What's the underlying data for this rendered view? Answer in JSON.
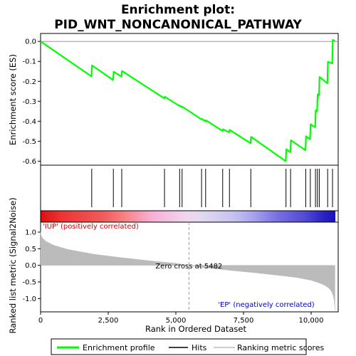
{
  "chart_data": {
    "type": "line",
    "title_line1": "Enrichment plot:",
    "title_line2": "PID_WNT_NONCANONICAL_PATHWAY",
    "top_panel": {
      "ylabel": "Enrichment score (ES)",
      "ylim": [
        -0.62,
        0.04
      ],
      "yticks": [
        0.0,
        -0.1,
        -0.2,
        -0.3,
        -0.4,
        -0.5,
        -0.6
      ],
      "ytick_labels": [
        "0.0",
        "-0.1",
        "-0.2",
        "-0.3",
        "-0.4",
        "-0.5",
        "-0.6"
      ],
      "series": [
        {
          "name": "Enrichment profile",
          "color": "#00ff00",
          "x": [
            0,
            1880,
            1900,
            2680,
            2700,
            2990,
            3010,
            4570,
            4590,
            5130,
            5150,
            5220,
            5240,
            5940,
            5960,
            6090,
            6110,
            6720,
            6740,
            6970,
            6990,
            7760,
            7780,
            9060,
            9080,
            9230,
            9250,
            9790,
            9810,
            9960,
            9980,
            10150,
            10170,
            10220,
            10240,
            10290,
            10310,
            10600,
            10620,
            10780,
            10800,
            10880
          ],
          "y": [
            0.0,
            -0.175,
            -0.12,
            -0.193,
            -0.152,
            -0.176,
            -0.148,
            -0.285,
            -0.277,
            -0.323,
            -0.321,
            -0.33,
            -0.327,
            -0.39,
            -0.388,
            -0.4,
            -0.395,
            -0.448,
            -0.44,
            -0.455,
            -0.443,
            -0.51,
            -0.478,
            -0.6,
            -0.54,
            -0.555,
            -0.495,
            -0.545,
            -0.475,
            -0.49,
            -0.415,
            -0.43,
            -0.345,
            -0.35,
            -0.265,
            -0.27,
            -0.178,
            -0.21,
            -0.102,
            -0.11,
            0.008,
            0.003
          ]
        }
      ]
    },
    "hits": {
      "name": "Hits",
      "x": [
        1890,
        2690,
        3000,
        4580,
        5140,
        5230,
        5950,
        6100,
        6730,
        6980,
        7770,
        9070,
        9240,
        9800,
        9970,
        10160,
        10230,
        10300,
        10610,
        10790
      ]
    },
    "color_bar": {
      "stops": [
        {
          "pos": 0.0,
          "color": "#cc0000"
        },
        {
          "pos": 0.005,
          "color": "#dd1111"
        },
        {
          "pos": 0.07,
          "color": "#ee3333"
        },
        {
          "pos": 0.21,
          "color": "#f25a5a"
        },
        {
          "pos": 0.28,
          "color": "#f58080"
        },
        {
          "pos": 0.38,
          "color": "#f9b0d8"
        },
        {
          "pos": 0.5,
          "color": "#f0d8ee"
        },
        {
          "pos": 0.55,
          "color": "#e0d8f0"
        },
        {
          "pos": 0.65,
          "color": "#c8c4f2"
        },
        {
          "pos": 0.72,
          "color": "#a8a4ee"
        },
        {
          "pos": 0.8,
          "color": "#7a72e2"
        },
        {
          "pos": 0.9,
          "color": "#5048d4"
        },
        {
          "pos": 0.96,
          "color": "#2a22c4"
        },
        {
          "pos": 1.0,
          "color": "#1a10b8"
        }
      ]
    },
    "bottom_panel": {
      "ylabel": "Ranked list metric (Signal2Noise)",
      "ylim": [
        -1.4,
        1.3
      ],
      "yticks": [
        1.0,
        0.5,
        0.0,
        -0.5,
        -1.0
      ],
      "ytick_labels": [
        "1.0",
        "0.5",
        "0.0",
        "-0.5",
        "-1.0"
      ],
      "series": [
        {
          "name": "Ranking metric scores",
          "color": "#bbbbbb",
          "x": [
            0,
            10,
            60,
            200,
            500,
            1000,
            2000,
            3000,
            4000,
            5000,
            5482,
            6000,
            7000,
            8000,
            9000,
            9500,
            10000,
            10300,
            10500,
            10650,
            10750,
            10820,
            10860,
            10880
          ],
          "y": [
            1.02,
            0.92,
            0.83,
            0.72,
            0.6,
            0.48,
            0.33,
            0.23,
            0.14,
            0.06,
            0.0,
            -0.06,
            -0.15,
            -0.23,
            -0.32,
            -0.37,
            -0.45,
            -0.53,
            -0.6,
            -0.68,
            -0.78,
            -0.92,
            -1.1,
            -1.35
          ]
        }
      ],
      "annotations": {
        "positive": "'IUP' (positively correlated)",
        "zero_cross": "Zero cross at 5482",
        "negative": "'EP' (negatively correlated)",
        "positive_color": "#cc0000",
        "negative_color": "#0000cc"
      },
      "zero_cross": 5482
    },
    "x_axis": {
      "xlabel": "Rank in Ordered Dataset",
      "xlim": [
        0,
        11000
      ],
      "xticks": [
        0,
        2500,
        5000,
        7500,
        10000
      ],
      "xtick_labels": [
        "0",
        "2,500",
        "5,000",
        "7,500",
        "10,000"
      ]
    },
    "legend": {
      "items": [
        "Enrichment profile",
        "Hits",
        "Ranking metric scores"
      ],
      "placement": "bottom"
    }
  }
}
